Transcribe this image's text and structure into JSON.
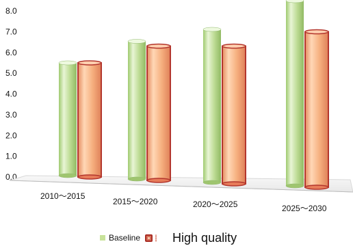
{
  "chart_data": {
    "type": "bar",
    "categories": [
      "2010～2015",
      "2015～2020",
      "2020～2025",
      "2025～2030"
    ],
    "series": [
      {
        "name": "Baseline",
        "values": [
          5.6,
          6.5,
          7.0,
          8.2
        ],
        "color": "#c8e29a"
      },
      {
        "name": "High quality",
        "values": [
          5.6,
          6.3,
          6.3,
          6.9
        ],
        "color": "#f4b383"
      }
    ],
    "ylim": [
      0,
      8
    ],
    "yticks": [
      "0.0",
      "1.0",
      "2.0",
      "3.0",
      "4.0",
      "5.0",
      "6.0",
      "7.0",
      "8.0"
    ],
    "grid": false,
    "legend_position": "bottom",
    "title": "",
    "xlabel": "",
    "ylabel": ""
  },
  "colors": {
    "baseline_edge": "#8fb86b",
    "high_quality_edge": "#b3362d",
    "axis_plane": "#d8d8d8",
    "text": "#111111"
  },
  "legend": {
    "items": [
      {
        "label": "Baseline",
        "icon": "green-square-icon"
      },
      {
        "label": "High quality",
        "icon": "red-square-icon"
      }
    ]
  }
}
